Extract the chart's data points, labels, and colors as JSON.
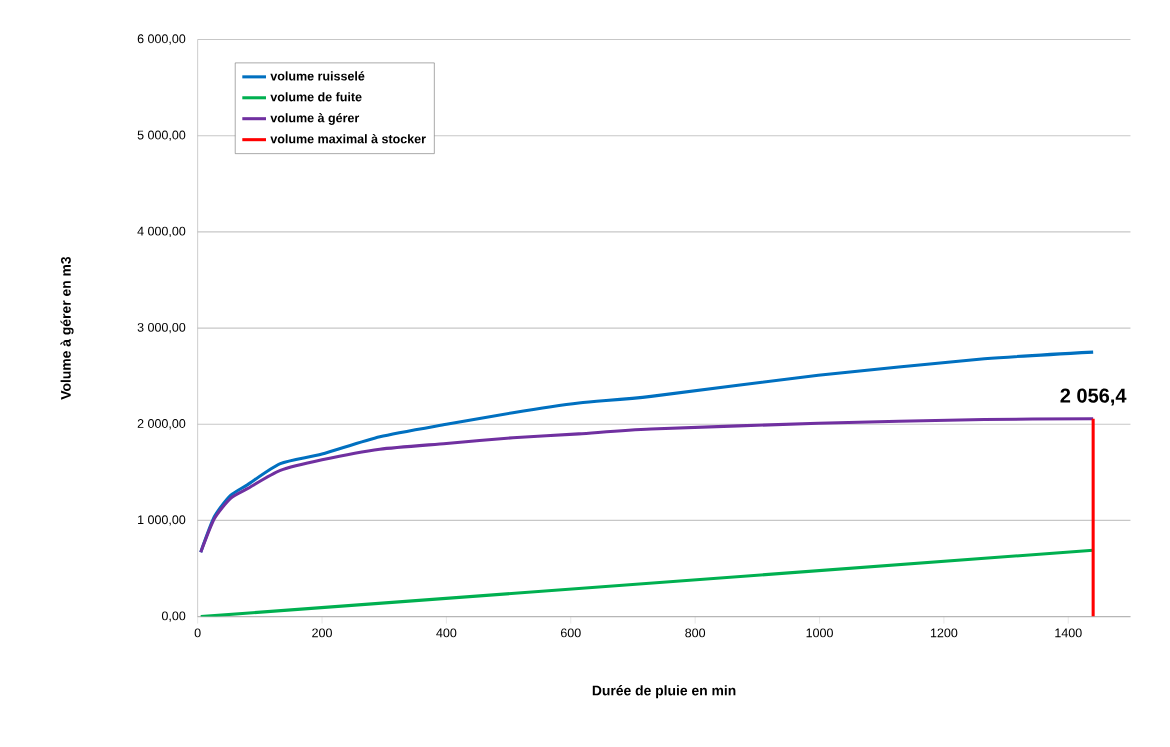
{
  "chart_data": {
    "type": "line",
    "xlabel": "Durée de pluie en min",
    "ylabel": "Volume à gérer en m3",
    "xlim": [
      0,
      1500
    ],
    "ylim": [
      0,
      6000
    ],
    "xticks": [
      0,
      200,
      400,
      600,
      800,
      1000,
      1200,
      1400
    ],
    "yticks": [
      {
        "value": 0,
        "label": "0,00"
      },
      {
        "value": 1000,
        "label": "1 000,00"
      },
      {
        "value": 2000,
        "label": "2 000,00"
      },
      {
        "value": 3000,
        "label": "3 000,00"
      },
      {
        "value": 4000,
        "label": "4 000,00"
      },
      {
        "value": 5000,
        "label": "5 000,00"
      },
      {
        "value": 6000,
        "label": "6 000,00"
      }
    ],
    "grid": "y",
    "legend": "top left",
    "marker": "none",
    "line_style": "solid",
    "series": [
      {
        "name": "volume ruisselé",
        "color": "#0070c0",
        "x": [
          5,
          27,
          53,
          80,
          133,
          200,
          293,
          400,
          507,
          613,
          729,
          998,
          1265,
          1440
        ],
        "values": [
          670,
          1040,
          1260,
          1370,
          1590,
          1690,
          1870,
          2000,
          2120,
          2220,
          2290,
          2510,
          2680,
          2750
        ]
      },
      {
        "name": "volume de fuite",
        "color": "#00b050",
        "x": [
          5,
          1440
        ],
        "values": [
          0,
          690
        ]
      },
      {
        "name": "volume à gérer",
        "color": "#7030a0",
        "x": [
          5,
          27,
          53,
          80,
          133,
          200,
          293,
          400,
          507,
          613,
          729,
          998,
          1265,
          1440
        ],
        "values": [
          670,
          1020,
          1230,
          1330,
          1520,
          1630,
          1740,
          1800,
          1860,
          1900,
          1950,
          2010,
          2050,
          2056.4
        ]
      },
      {
        "name": "volume maximal à stocker",
        "color": "#ff0000",
        "x": [
          1440,
          1440
        ],
        "values": [
          0,
          2056.4
        ]
      }
    ],
    "annotations": [
      {
        "text": "2 056,4",
        "x": 1440,
        "y": 2056.4
      }
    ]
  }
}
